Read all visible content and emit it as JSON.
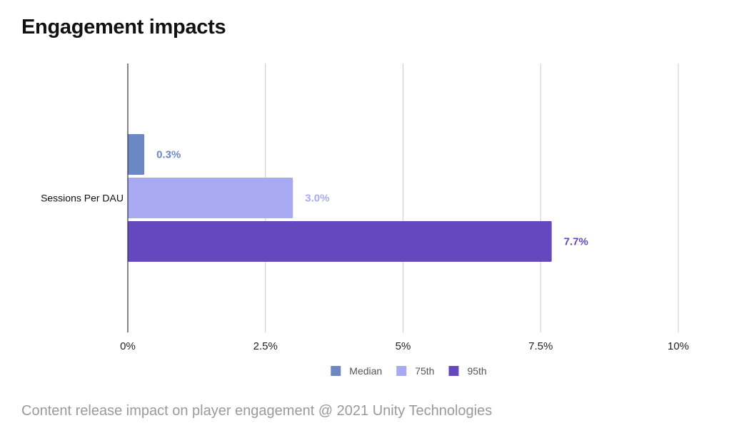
{
  "title": "Engagement impacts",
  "caption": "Content release impact on player engagement @ 2021 Unity Technologies",
  "chart_data": {
    "type": "bar",
    "orientation": "horizontal",
    "categories": [
      "Sessions Per DAU"
    ],
    "series": [
      {
        "name": "Median",
        "values": [
          0.3
        ],
        "label": "0.3%",
        "color": "#6b88c2"
      },
      {
        "name": "75th",
        "values": [
          3.0
        ],
        "label": "3.0%",
        "color": "#a9abf2"
      },
      {
        "name": "95th",
        "values": [
          7.7
        ],
        "label": "7.7%",
        "color": "#6547c0"
      }
    ],
    "xlim": [
      0,
      10
    ],
    "xticks": [
      0,
      2.5,
      5,
      7.5,
      10
    ],
    "xtick_labels": [
      "0%",
      "2.5%",
      "5%",
      "7.5%",
      "10%"
    ],
    "grid": true,
    "legend_position": "bottom",
    "xlabel": "",
    "ylabel": ""
  }
}
